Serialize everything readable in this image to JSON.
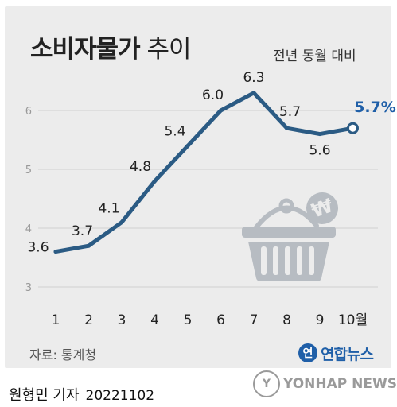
{
  "header": {
    "title_bold": "소비자물가",
    "title_light": "추이",
    "subtitle": "전년 동월 대비"
  },
  "source": "자료: 통계청",
  "logo": {
    "icon": "연",
    "text": "연합뉴스"
  },
  "footer": {
    "author": "원형민 기자",
    "date": "20221102"
  },
  "watermark": {
    "icon": "Y",
    "text": "YONHAP NEWS"
  },
  "colors": {
    "line": "#2b5b84",
    "accent": "#1f5fa8",
    "basket": "#b7bcc2",
    "grid": "#cfcfcf"
  },
  "icons": [
    "shopping-basket-icon",
    "won-sign-icon",
    "yonhap-logo-icon"
  ],
  "chart_data": {
    "type": "line",
    "categories": [
      "1",
      "2",
      "3",
      "4",
      "5",
      "6",
      "7",
      "8",
      "9",
      "10월"
    ],
    "values": [
      3.6,
      3.7,
      4.1,
      4.8,
      5.4,
      6.0,
      6.3,
      5.7,
      5.6,
      5.7
    ],
    "value_labels": [
      "3.6",
      "3.7",
      "4.1",
      "4.8",
      "5.4",
      "6.0",
      "6.3",
      "5.7",
      "5.6",
      "5.7%"
    ],
    "title": "소비자물가 추이",
    "subtitle": "전년 동월 대비",
    "yticks": [
      3,
      4,
      5,
      6
    ],
    "ylim": [
      3,
      6.5
    ],
    "grid": true,
    "last_point_highlighted": true
  }
}
